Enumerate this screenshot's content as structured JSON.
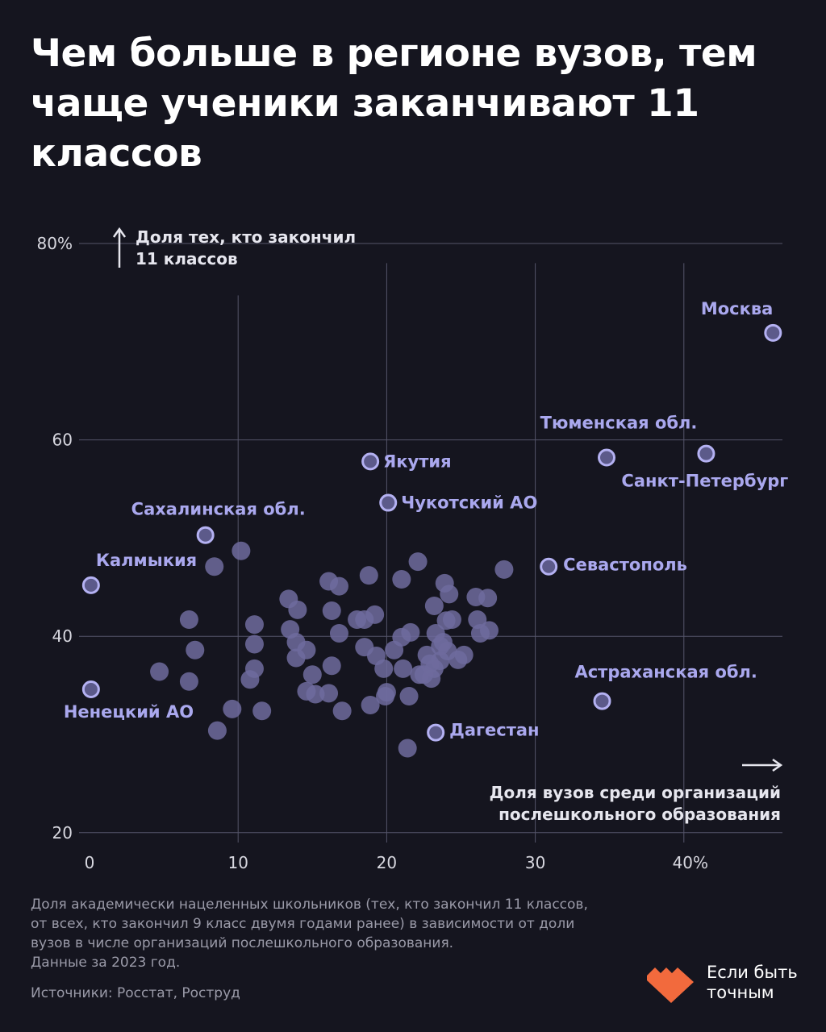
{
  "title": "Чем больше в регионе вузов, тем чаще ученики заканчивают 11 классов",
  "chart_data": {
    "type": "scatter",
    "ylabel": "Доля тех, кто закончил 11 классов",
    "xlabel": "Доля вузов среди организаций послешкольного образования",
    "xlim": [
      0,
      46
    ],
    "ylim": [
      20,
      80
    ],
    "x_ticks": [
      "0",
      "10",
      "20",
      "30",
      "40%"
    ],
    "x_tick_values": [
      0,
      10,
      20,
      30,
      40
    ],
    "y_ticks": [
      "20",
      "40",
      "60",
      "80%"
    ],
    "y_tick_values": [
      20,
      40,
      60,
      80
    ],
    "grid": true,
    "colors": {
      "point": "#6e6b9e",
      "highlight_stroke": "#b4b1f2",
      "label": "#aaa8ee"
    },
    "labeled_points": [
      {
        "label": "Москва",
        "x": 46.0,
        "y": 70.9
      },
      {
        "label": "Тюменская обл.",
        "x": 34.8,
        "y": 58.2
      },
      {
        "label": "Санкт-Петербург",
        "x": 41.5,
        "y": 58.6
      },
      {
        "label": "Якутия",
        "x": 18.9,
        "y": 57.8
      },
      {
        "label": "Чукотский АО",
        "x": 20.1,
        "y": 53.6
      },
      {
        "label": "Сахалинская обл.",
        "x": 7.8,
        "y": 50.3
      },
      {
        "label": "Калмыкия",
        "x": 0.1,
        "y": 45.2
      },
      {
        "label": "Севастополь",
        "x": 30.9,
        "y": 47.1
      },
      {
        "label": "Астраханская обл.",
        "x": 34.5,
        "y": 33.4
      },
      {
        "label": "Дагестан",
        "x": 23.3,
        "y": 30.2
      },
      {
        "label": "Ненецкий АО",
        "x": 0.1,
        "y": 34.6
      }
    ],
    "points": [
      [
        10.2,
        48.7
      ],
      [
        8.4,
        47.1
      ],
      [
        6.7,
        41.7
      ],
      [
        7.1,
        38.6
      ],
      [
        4.7,
        36.4
      ],
      [
        6.7,
        35.4
      ],
      [
        9.6,
        32.6
      ],
      [
        8.6,
        30.4
      ],
      [
        11.1,
        41.2
      ],
      [
        11.1,
        39.2
      ],
      [
        11.1,
        36.7
      ],
      [
        10.8,
        35.6
      ],
      [
        11.6,
        32.4
      ],
      [
        13.4,
        43.8
      ],
      [
        14.0,
        42.7
      ],
      [
        13.5,
        40.7
      ],
      [
        13.9,
        39.4
      ],
      [
        13.9,
        37.8
      ],
      [
        14.6,
        38.6
      ],
      [
        15.0,
        36.1
      ],
      [
        14.6,
        34.4
      ],
      [
        15.2,
        34.1
      ],
      [
        16.1,
        34.2
      ],
      [
        16.3,
        37.0
      ],
      [
        16.1,
        45.6
      ],
      [
        16.8,
        45.1
      ],
      [
        16.3,
        42.6
      ],
      [
        16.8,
        40.3
      ],
      [
        17.0,
        32.4
      ],
      [
        18.0,
        41.7
      ],
      [
        18.5,
        41.7
      ],
      [
        18.8,
        46.2
      ],
      [
        19.2,
        42.2
      ],
      [
        18.5,
        38.9
      ],
      [
        19.3,
        38.0
      ],
      [
        18.9,
        33.0
      ],
      [
        19.8,
        36.7
      ],
      [
        20.0,
        34.3
      ],
      [
        21.0,
        45.8
      ],
      [
        22.1,
        47.6
      ],
      [
        21.6,
        40.4
      ],
      [
        21.0,
        39.9
      ],
      [
        20.5,
        38.6
      ],
      [
        19.9,
        33.9
      ],
      [
        21.5,
        33.9
      ],
      [
        21.1,
        36.7
      ],
      [
        22.7,
        38.1
      ],
      [
        23.2,
        43.1
      ],
      [
        23.9,
        45.4
      ],
      [
        24.2,
        44.3
      ],
      [
        24.0,
        41.6
      ],
      [
        24.4,
        41.7
      ],
      [
        23.3,
        40.3
      ],
      [
        23.8,
        39.4
      ],
      [
        22.9,
        37.2
      ],
      [
        22.5,
        36.1
      ],
      [
        21.4,
        28.6
      ],
      [
        22.2,
        36.1
      ],
      [
        23.2,
        36.7
      ],
      [
        24.1,
        38.5
      ],
      [
        24.8,
        37.6
      ],
      [
        25.2,
        38.1
      ],
      [
        26.0,
        44.0
      ],
      [
        26.8,
        43.9
      ],
      [
        26.1,
        41.7
      ],
      [
        26.9,
        40.6
      ],
      [
        26.3,
        40.3
      ],
      [
        27.9,
        46.8
      ],
      [
        23.6,
        39.0
      ],
      [
        23.6,
        37.5
      ],
      [
        23.0,
        35.7
      ]
    ]
  },
  "note": "Доля академически нацеленных школьников (тех, кто закончил 11 классов,\nот всех, кто закончил 9 класс двумя годами ранее) в зависимости от доли\nвузов в числе организаций послешкольного образования.\nДанные за 2023 год.",
  "source": "Источники: Росстат, Роструд",
  "logo": {
    "text": "Если быть\nточным",
    "color": "#f26a3d"
  }
}
